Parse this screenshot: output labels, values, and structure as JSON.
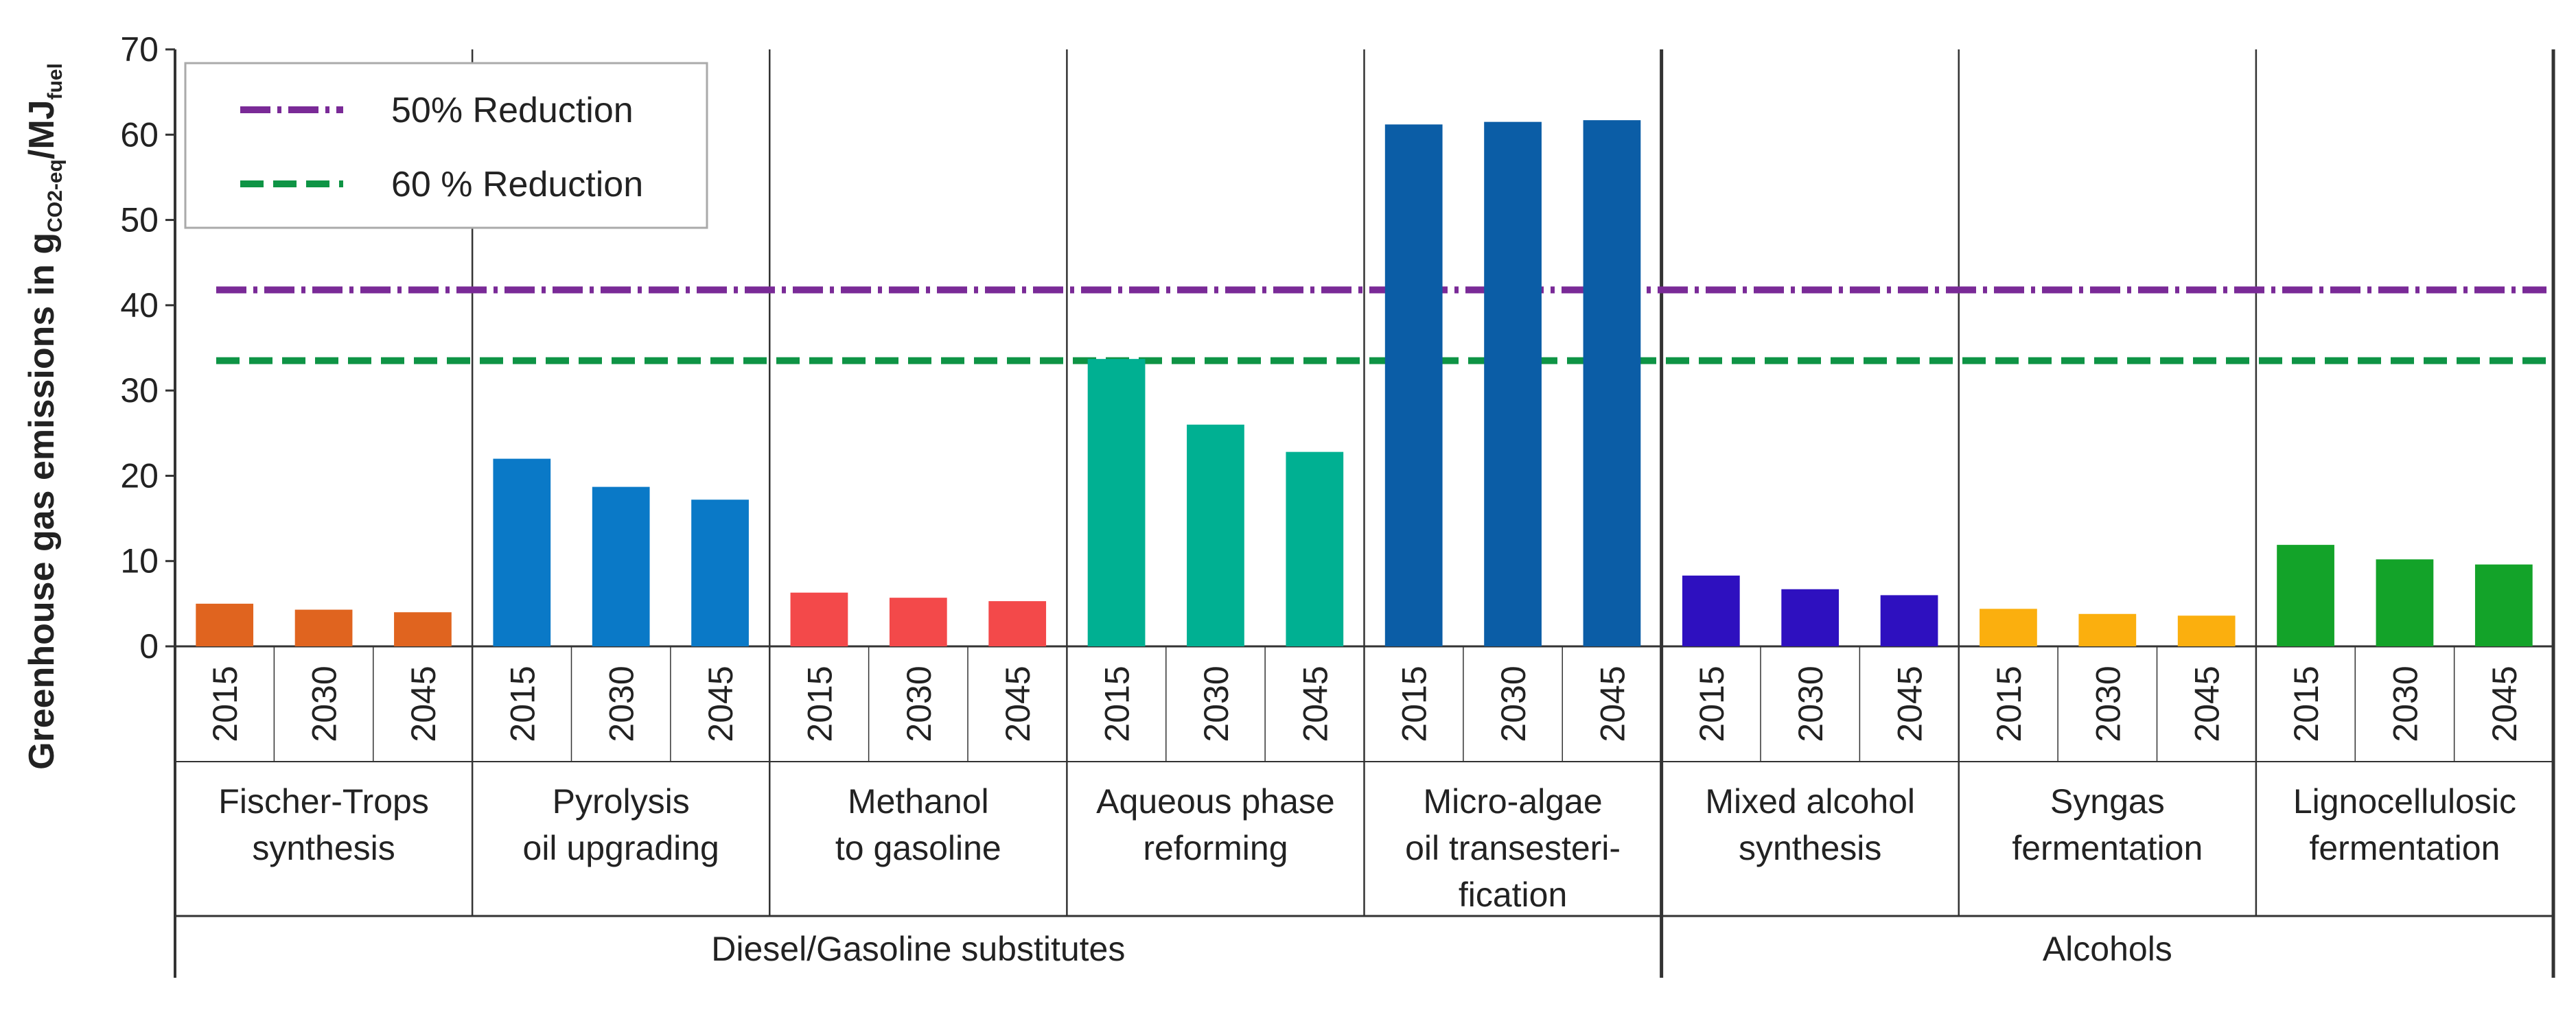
{
  "colors": {
    "fischer": "#E0641F",
    "pyrolysis": "#0A79C7",
    "methanol": "#F3494A",
    "aqueous": "#00B092",
    "microalgae": "#0B5DA6",
    "mixed_alcohol": "#2E10BF",
    "syngas": "#FBAF0E",
    "lignocellulosic": "#13A329",
    "line_50": "#7A2A97",
    "line_60": "#0E9445",
    "grid": "#333333"
  },
  "chart_data": {
    "type": "bar",
    "ylabel_main": "Greenhouse gas emissions in g",
    "ylabel_sub1": "CO2-eq",
    "ylabel_mid": "/MJ",
    "ylabel_sub2": "fuel",
    "ylim": [
      0,
      70
    ],
    "yticks": [
      0,
      10,
      20,
      30,
      40,
      50,
      60,
      70
    ],
    "years": [
      "2015",
      "2030",
      "2045"
    ],
    "groups": [
      {
        "name_line1": "Fischer-Trops",
        "name_line2": "synthesis",
        "name_line3": "",
        "color_key": "fischer",
        "values": [
          5,
          4.3,
          4
        ]
      },
      {
        "name_line1": "Pyrolysis",
        "name_line2": "oil upgrading",
        "name_line3": "",
        "color_key": "pyrolysis",
        "values": [
          22,
          18.7,
          17.2
        ]
      },
      {
        "name_line1": "Methanol",
        "name_line2": "to gasoline",
        "name_line3": "",
        "color_key": "methanol",
        "values": [
          6.3,
          5.7,
          5.3
        ]
      },
      {
        "name_line1": "Aqueous phase",
        "name_line2": "reforming",
        "name_line3": "",
        "color_key": "aqueous",
        "values": [
          33.7,
          26,
          22.8
        ]
      },
      {
        "name_line1": "Micro-algae",
        "name_line2": "oil transesteri-",
        "name_line3": "fication",
        "color_key": "microalgae",
        "values": [
          61.2,
          61.5,
          61.7
        ]
      },
      {
        "name_line1": "Mixed alcohol",
        "name_line2": "synthesis",
        "name_line3": "",
        "color_key": "mixed_alcohol",
        "values": [
          8.3,
          6.7,
          6
        ]
      },
      {
        "name_line1": "Syngas",
        "name_line2": "fermentation",
        "name_line3": "",
        "color_key": "syngas",
        "values": [
          4.4,
          3.8,
          3.6
        ]
      },
      {
        "name_line1": "Lignocellulosic",
        "name_line2": "fermentation",
        "name_line3": "",
        "color_key": "lignocellulosic",
        "values": [
          11.9,
          10.2,
          9.6
        ]
      }
    ],
    "categories": [
      {
        "name": "Diesel/Gasoline substitutes",
        "group_count": 5
      },
      {
        "name": "Alcohols",
        "group_count": 3
      }
    ],
    "reference_lines": [
      {
        "label": "50% Reduction",
        "value": 41.8,
        "color_key": "line_50",
        "style": "dash-dot"
      },
      {
        "label": "60 % Reduction",
        "value": 33.5,
        "color_key": "line_60",
        "style": "dashed"
      }
    ],
    "legend_position": "top-left"
  }
}
